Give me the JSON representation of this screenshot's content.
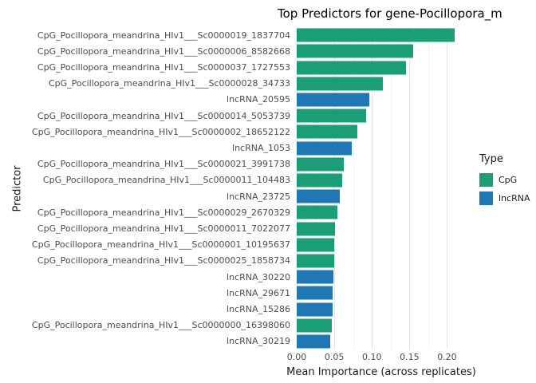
{
  "title": "Top Predictors for gene-Pocillopora_m",
  "axes": {
    "xlabel": "Mean Importance (across replicates)",
    "ylabel": "Predictor"
  },
  "legend": {
    "title": "Type",
    "entries": [
      {
        "label": "CpG",
        "color": "#1b9e77"
      },
      {
        "label": "lncRNA",
        "color": "#1f78b4"
      }
    ]
  },
  "chart_data": {
    "type": "bar",
    "orientation": "horizontal",
    "title": "Top Predictors for gene-Pocillopora_m",
    "xlabel": "Mean Importance (across replicates)",
    "ylabel": "Predictor",
    "xlim": [
      0,
      0.225
    ],
    "x_major_ticks": [
      0,
      0.05,
      0.1,
      0.15,
      0.2
    ],
    "x_tick_labels": [
      "0.00",
      "0.05",
      "0.10",
      "0.15",
      "0.20"
    ],
    "x_minor_ticks": [
      0.025,
      0.075,
      0.125,
      0.175
    ],
    "grid": true,
    "legend_position": "right",
    "series_colors": {
      "CpG": "#1b9e77",
      "lncRNA": "#1f78b4"
    },
    "bars": [
      {
        "label": "CpG_Pocillopora_meandrina_HIv1___Sc0000019_1837704",
        "type": "CpG",
        "value": 0.21
      },
      {
        "label": "CpG_Pocillopora_meandrina_HIv1___Sc0000006_8582668",
        "type": "CpG",
        "value": 0.155
      },
      {
        "label": "CpG_Pocillopora_meandrina_HIv1___Sc0000037_1727553",
        "type": "CpG",
        "value": 0.145
      },
      {
        "label": "CpG_Pocillopora_meandrina_HIv1___Sc0000028_34733",
        "type": "CpG",
        "value": 0.115
      },
      {
        "label": "lncRNA_20595",
        "type": "lncRNA",
        "value": 0.097
      },
      {
        "label": "CpG_Pocillopora_meandrina_HIv1___Sc0000014_5053739",
        "type": "CpG",
        "value": 0.092
      },
      {
        "label": "CpG_Pocillopora_meandrina_HIv1___Sc0000002_18652122",
        "type": "CpG",
        "value": 0.081
      },
      {
        "label": "lncRNA_1053",
        "type": "lncRNA",
        "value": 0.073
      },
      {
        "label": "CpG_Pocillopora_meandrina_HIv1___Sc0000021_3991738",
        "type": "CpG",
        "value": 0.063
      },
      {
        "label": "CpG_Pocillopora_meandrina_HIv1___Sc0000011_104483",
        "type": "CpG",
        "value": 0.06
      },
      {
        "label": "lncRNA_23725",
        "type": "lncRNA",
        "value": 0.057
      },
      {
        "label": "CpG_Pocillopora_meandrina_HIv1___Sc0000029_2670329",
        "type": "CpG",
        "value": 0.054
      },
      {
        "label": "CpG_Pocillopora_meandrina_HIv1___Sc0000011_7022077",
        "type": "CpG",
        "value": 0.051
      },
      {
        "label": "CpG_Pocillopora_meandrina_HIv1___Sc0000001_10195637",
        "type": "CpG",
        "value": 0.05
      },
      {
        "label": "CpG_Pocillopora_meandrina_HIv1___Sc0000025_1858734",
        "type": "CpG",
        "value": 0.05
      },
      {
        "label": "lncRNA_30220",
        "type": "lncRNA",
        "value": 0.049
      },
      {
        "label": "lncRNA_29671",
        "type": "lncRNA",
        "value": 0.048
      },
      {
        "label": "lncRNA_15286",
        "type": "lncRNA",
        "value": 0.048
      },
      {
        "label": "CpG_Pocillopora_meandrina_HIv1___Sc0000000_16398060",
        "type": "CpG",
        "value": 0.047
      },
      {
        "label": "lncRNA_30219",
        "type": "lncRNA",
        "value": 0.045
      }
    ]
  }
}
